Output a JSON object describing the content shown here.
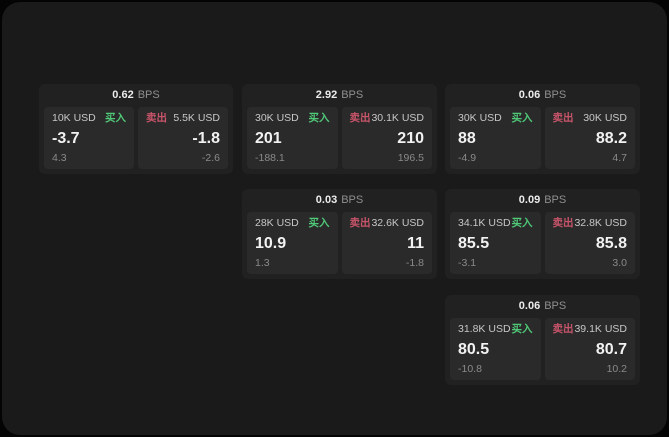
{
  "labels": {
    "buy": "买入",
    "sell": "卖出",
    "bps": "BPS"
  },
  "colors": {
    "page_bg": "#1a1a1a",
    "card_bg": "#212121",
    "tile_bg": "#2a2a2a",
    "buy": "#4fc878",
    "sell": "#c8546a",
    "value_text": "#f2f2f2",
    "muted_text": "#8a8a8a"
  },
  "cards": [
    {
      "bps": "0.62",
      "buy": {
        "amount": "10K USD",
        "value": "-3.7",
        "delta": "4.3"
      },
      "sell": {
        "amount": "5.5K USD",
        "value": "-1.8",
        "delta": "-2.6"
      }
    },
    {
      "bps": "2.92",
      "buy": {
        "amount": "30K USD",
        "value": "201",
        "delta": "-188.1"
      },
      "sell": {
        "amount": "30.1K USD",
        "value": "210",
        "delta": "196.5"
      }
    },
    {
      "bps": "0.06",
      "buy": {
        "amount": "30K USD",
        "value": "88",
        "delta": "-4.9"
      },
      "sell": {
        "amount": "30K USD",
        "value": "88.2",
        "delta": "4.7"
      }
    },
    {
      "bps": "0.03",
      "buy": {
        "amount": "28K USD",
        "value": "10.9",
        "delta": "1.3"
      },
      "sell": {
        "amount": "32.6K USD",
        "value": "11",
        "delta": "-1.8"
      }
    },
    {
      "bps": "0.09",
      "buy": {
        "amount": "34.1K USD",
        "value": "85.5",
        "delta": "-3.1"
      },
      "sell": {
        "amount": "32.8K USD",
        "value": "85.8",
        "delta": "3.0"
      }
    },
    {
      "bps": "0.06",
      "buy": {
        "amount": "31.8K USD",
        "value": "80.5",
        "delta": "-10.8"
      },
      "sell": {
        "amount": "39.1K USD",
        "value": "80.7",
        "delta": "10.2"
      }
    }
  ]
}
